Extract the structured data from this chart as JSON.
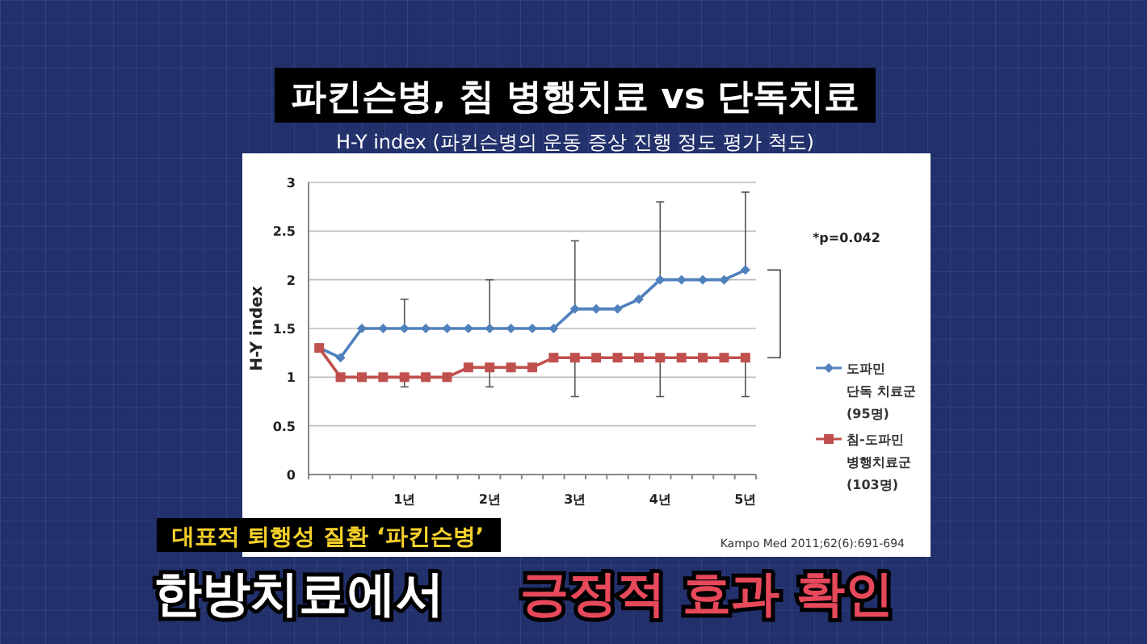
{
  "chart_data": {
    "type": "line",
    "title": "파킨슨병, 침 병행치료 vs 단독치료",
    "subtitle": "H-Y index (파킨슨병의 운동 증상 진행 정도 평가 척도)",
    "ylabel": "H-Y index",
    "categories": [
      null,
      null,
      null,
      null,
      "1년",
      null,
      null,
      null,
      "2년",
      null,
      null,
      null,
      "3년",
      null,
      null,
      null,
      "4년",
      null,
      null,
      null,
      "5년"
    ],
    "series": [
      {
        "name": "도파민\n단독 치료군\n(95명)",
        "color": "#4f81bd",
        "marker": "diamond",
        "values": [
          1.3,
          1.2,
          1.5,
          1.5,
          1.5,
          1.5,
          1.5,
          1.5,
          1.5,
          1.5,
          1.5,
          1.5,
          1.7,
          1.7,
          1.7,
          1.8,
          2.0,
          2.0,
          2.0,
          2.0,
          2.1
        ],
        "errors": [
          null,
          null,
          null,
          null,
          [
            1.5,
            1.8
          ],
          null,
          null,
          null,
          [
            1.5,
            2.0
          ],
          null,
          null,
          null,
          [
            1.7,
            2.4
          ],
          null,
          null,
          null,
          [
            2.0,
            2.8
          ],
          null,
          null,
          null,
          [
            2.1,
            2.9
          ]
        ]
      },
      {
        "name": "침-도파민\n병행치료군\n(103명)",
        "color": "#c0504d",
        "marker": "square",
        "values": [
          1.3,
          1.0,
          1.0,
          1.0,
          1.0,
          1.0,
          1.0,
          1.1,
          1.1,
          1.1,
          1.1,
          1.2,
          1.2,
          1.2,
          1.2,
          1.2,
          1.2,
          1.2,
          1.2,
          1.2,
          1.2
        ],
        "errors": [
          null,
          null,
          null,
          null,
          [
            0.9,
            1.0
          ],
          null,
          null,
          null,
          [
            0.9,
            1.1
          ],
          null,
          null,
          null,
          [
            0.8,
            1.2
          ],
          null,
          null,
          null,
          [
            0.8,
            1.2
          ],
          null,
          null,
          null,
          [
            0.8,
            1.2
          ]
        ]
      }
    ],
    "ylim": [
      0,
      3
    ],
    "yticks": [
      0,
      0.5,
      1,
      1.5,
      2,
      2.5,
      3
    ],
    "grid": "y",
    "legend": "right",
    "line_style": "solid",
    "annotations": [
      "*p=0.042",
      "Kampo Med 2011;62(6):691-694",
      "대표적 퇴행성 질환 ‘파킨슨병’",
      "한방치료에서",
      "긍정적 효과 확인"
    ]
  }
}
